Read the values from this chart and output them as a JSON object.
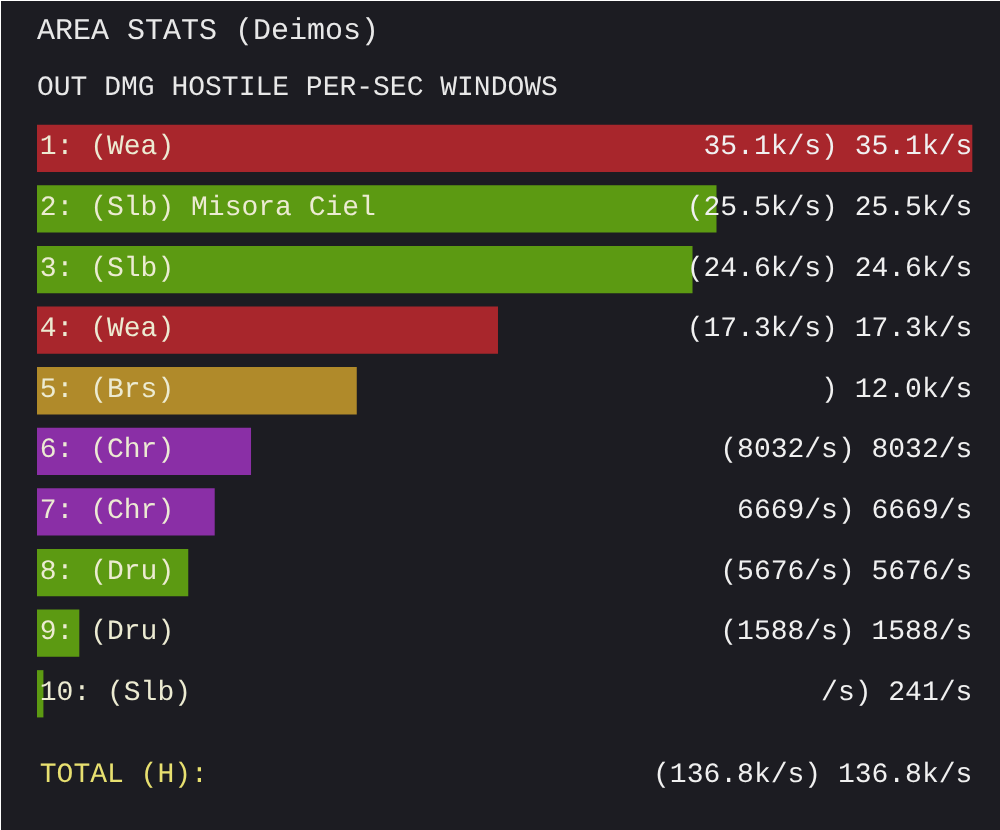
{
  "chart_data": {
    "type": "bar",
    "orientation": "horizontal",
    "title": "AREA STATS (Deimos)",
    "subtitle": "OUT DMG HOSTILE PER-SEC WINDOWS",
    "categories": [
      "1:  (Wea)",
      "2:  (Slb)  Misora Ciel",
      "3:  (Slb)",
      "4:  (Wea)",
      "5:  (Brs)",
      "6:  (Chr)",
      "7:  (Chr)",
      "8:  (Dru)",
      "9:  (Dru)",
      "10: (Slb)"
    ],
    "values": [
      35100,
      25500,
      24600,
      17300,
      12000,
      8032,
      6669,
      5676,
      1588,
      241
    ],
    "colors": [
      "#a8262c",
      "#5c9a12",
      "#5c9a12",
      "#a8262c",
      "#b08a2a",
      "#8a2fa6",
      "#8a2fa6",
      "#5c9a12",
      "#5c9a12",
      "#5c9a12"
    ],
    "value_labels": [
      "35.1k/s) 35.1k/s",
      "(25.5k/s) 25.5k/s",
      "(24.6k/s) 24.6k/s",
      "(17.3k/s) 17.3k/s",
      ") 12.0k/s",
      "(8032/s) 8032/s",
      "6669/s) 6669/s",
      "(5676/s) 5676/s",
      "(1588/s) 1588/s",
      "/s) 241/s"
    ],
    "annotations": [
      "TOTAL (H):",
      "(136.8k/s) 136.8k/s"
    ]
  }
}
